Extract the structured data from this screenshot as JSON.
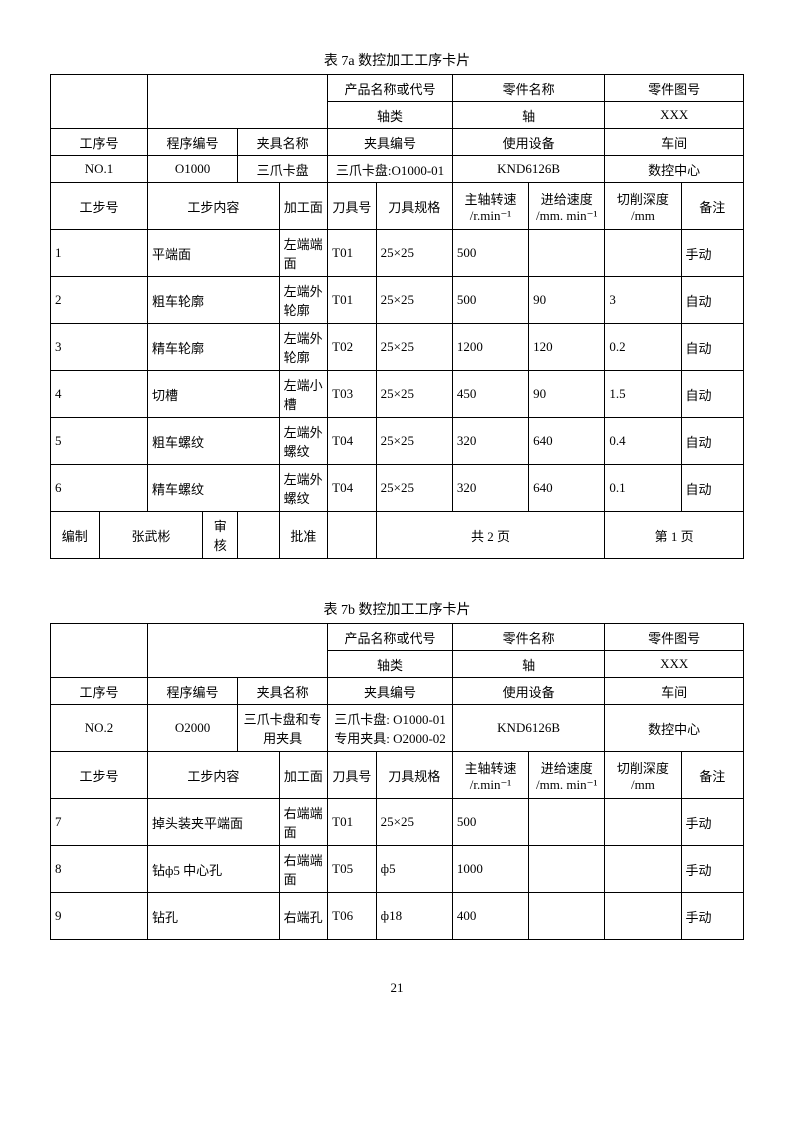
{
  "page_number": "21",
  "tableA": {
    "caption": "表 7a   数控加工工序卡片",
    "hdr_product": "产品名称或代号",
    "hdr_partname": "零件名称",
    "hdr_partno": "零件图号",
    "val_product": "轴类",
    "val_partname": "轴",
    "val_partno": "XXX",
    "hdr_seq": "工序号",
    "hdr_prog": "程序编号",
    "hdr_fixname": "夹具名称",
    "hdr_fixno": "夹具编号",
    "hdr_equip": "使用设备",
    "hdr_shop": "车间",
    "val_seq": "NO.1",
    "val_prog": "O1000",
    "val_fixname": "三爪卡盘",
    "val_fixno": "三爪卡盘:O1000-01",
    "val_equip": "KND6126B",
    "val_shop": "数控中心",
    "col_step": "工步号",
    "col_content": "工步内容",
    "col_face": "加工面",
    "col_toolno": "刀具号",
    "col_toolspec": "刀具规格",
    "col_spindle": "主轴转速",
    "col_spindle_u": "/r.min⁻¹",
    "col_feed": "进给速度",
    "col_feed_u": "/mm. min⁻¹",
    "col_depth": "切削深度",
    "col_depth_u": "/mm",
    "col_remark": "备注",
    "steps": [
      {
        "no": "1",
        "content": "平端面",
        "face": "左端端面",
        "tool": "T01",
        "spec": "25×25",
        "sp": "500",
        "fd": "",
        "dp": "",
        "rm": "手动"
      },
      {
        "no": "2",
        "content": "粗车轮廓",
        "face": "左端外轮廓",
        "tool": "T01",
        "spec": "25×25",
        "sp": "500",
        "fd": "90",
        "dp": "3",
        "rm": "自动"
      },
      {
        "no": "3",
        "content": "精车轮廓",
        "face": "左端外轮廓",
        "tool": "T02",
        "spec": "25×25",
        "sp": "1200",
        "fd": "120",
        "dp": "0.2",
        "rm": "自动"
      },
      {
        "no": "4",
        "content": "切槽",
        "face": "左端小槽",
        "tool": "T03",
        "spec": "25×25",
        "sp": "450",
        "fd": "90",
        "dp": "1.5",
        "rm": "自动"
      },
      {
        "no": "5",
        "content": "粗车螺纹",
        "face": "左端外螺纹",
        "tool": "T04",
        "spec": "25×25",
        "sp": "320",
        "fd": "640",
        "dp": "0.4",
        "rm": "自动"
      },
      {
        "no": "6",
        "content": "精车螺纹",
        "face": "左端外螺纹",
        "tool": "T04",
        "spec": "25×25",
        "sp": "320",
        "fd": "640",
        "dp": "0.1",
        "rm": "自动"
      }
    ],
    "ftr_compile": "编制",
    "ftr_compiler": "张武彬",
    "ftr_review": "审核",
    "ftr_approve": "批准",
    "ftr_pages": "共    2    页",
    "ftr_page": "第     1  页"
  },
  "tableB": {
    "caption": "表 7b   数控加工工序卡片",
    "hdr_product": "产品名称或代号",
    "hdr_partname": "零件名称",
    "hdr_partno": "零件图号",
    "val_product": "轴类",
    "val_partname": "轴",
    "val_partno": "XXX",
    "hdr_seq": "工序号",
    "hdr_prog": "程序编号",
    "hdr_fixname": "夹具名称",
    "hdr_fixno": "夹具编号",
    "hdr_equip": "使用设备",
    "hdr_shop": "车间",
    "val_seq": "NO.2",
    "val_prog": "O2000",
    "val_fixname": "三爪卡盘和专用夹具",
    "val_fixno": "三爪卡盘: O1000-01 专用夹具: O2000-02",
    "val_equip": "KND6126B",
    "val_shop": "数控中心",
    "col_step": "工步号",
    "col_content": "工步内容",
    "col_face": "加工面",
    "col_toolno": "刀具号",
    "col_toolspec": "刀具规格",
    "col_spindle": "主轴转速",
    "col_spindle_u": "/r.min⁻¹",
    "col_feed": "进给速度",
    "col_feed_u": "/mm. min⁻¹",
    "col_depth": "切削深度",
    "col_depth_u": "/mm",
    "col_remark": "备注",
    "steps": [
      {
        "no": "7",
        "content": "掉头装夹平端面",
        "face": "右端端面",
        "tool": "T01",
        "spec": "25×25",
        "sp": "500",
        "fd": "",
        "dp": "",
        "rm": "手动"
      },
      {
        "no": "8",
        "content": "钻ф5 中心孔",
        "face": "右端端面",
        "tool": "T05",
        "spec": "ф5",
        "sp": "1000",
        "fd": "",
        "dp": "",
        "rm": "手动"
      },
      {
        "no": "9",
        "content": "钻孔",
        "face": "右端孔",
        "tool": "T06",
        "spec": "ф18",
        "sp": "400",
        "fd": "",
        "dp": "",
        "rm": "手动"
      }
    ]
  }
}
